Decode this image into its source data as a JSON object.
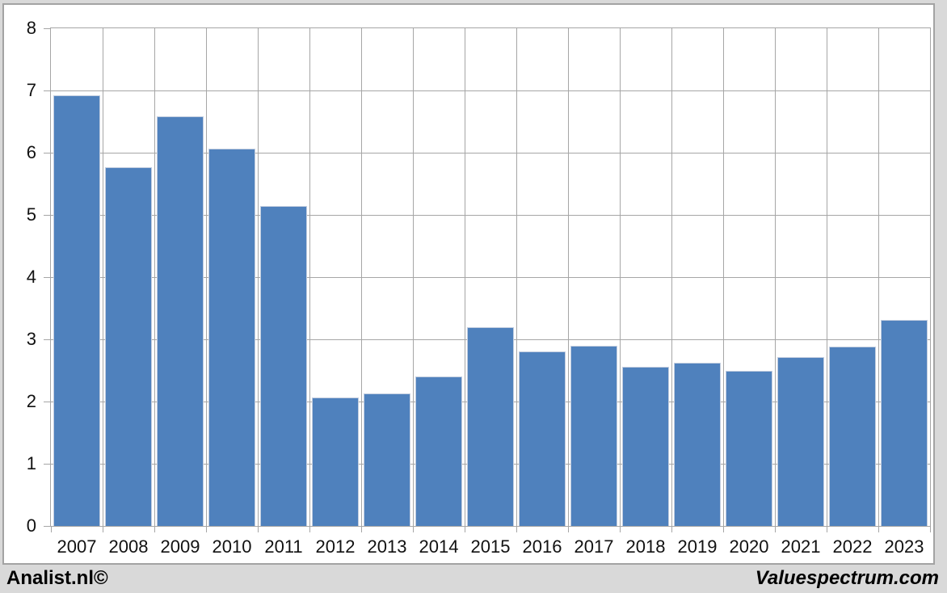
{
  "page": {
    "background": "#D9D9D9",
    "footer": {
      "left_text": "Analist.nl©",
      "right_text": "Valuespectrum.com"
    }
  },
  "chart_data": {
    "type": "bar",
    "title": "",
    "xlabel": "",
    "ylabel": "",
    "categories": [
      "2007",
      "2008",
      "2009",
      "2010",
      "2011",
      "2012",
      "2013",
      "2014",
      "2015",
      "2016",
      "2017",
      "2018",
      "2019",
      "2020",
      "2021",
      "2022",
      "2023"
    ],
    "values": [
      6.92,
      5.77,
      6.58,
      6.07,
      5.14,
      2.06,
      2.13,
      2.4,
      3.19,
      2.81,
      2.89,
      2.56,
      2.62,
      2.49,
      2.72,
      2.88,
      3.31
    ],
    "ylim": [
      0,
      8
    ],
    "ytick_step": 1,
    "grid": true,
    "legend_position": "none",
    "bar_color": "#4F81BD",
    "bar_border_color": "#C2CDDF",
    "grid_color": "#A6A6A6",
    "plot_background": "#FFFFFF",
    "axis_text_color": "#111111"
  }
}
